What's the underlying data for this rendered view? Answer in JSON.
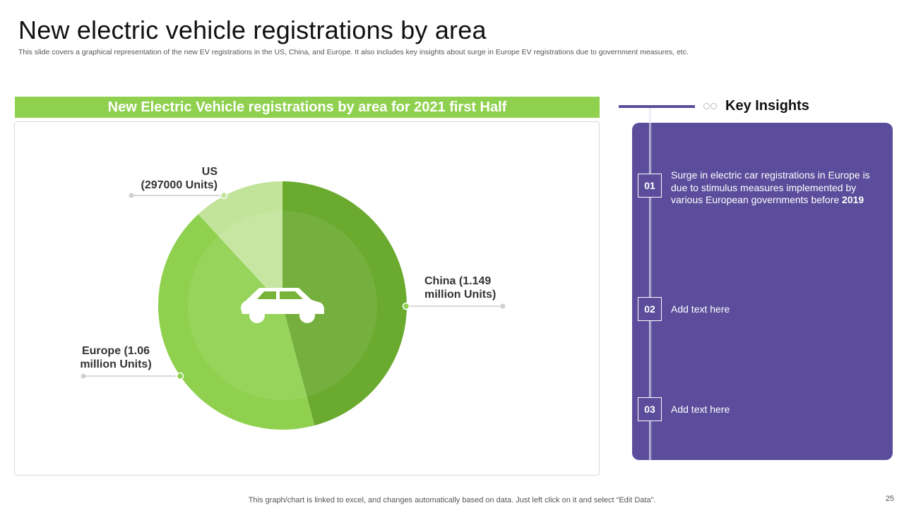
{
  "slide": {
    "title": "New electric vehicle registrations by area",
    "subtitle": "This slide covers a graphical representation of the new EV  registrations in the US, China, and Europe. It also includes key insights about surge in Europe EV registrations due to government measures, etc.",
    "footer": "This graph/chart is linked to excel,  and changes automatically based on data. Just left click on it and select “Edit Data”.",
    "page_number": "25"
  },
  "chart_header": "New Electric Vehicle registrations by area for 2021 first Half",
  "colors": {
    "china": "#6aaa2e",
    "europe": "#8fd14f",
    "us": "#c2e49a",
    "header": "#8fd14f",
    "panel": "#5b4d9b"
  },
  "chart_data": {
    "type": "pie",
    "title": "New Electric Vehicle registrations by area for 2021 first Half",
    "unit": "Units",
    "slices": [
      {
        "name": "China",
        "value": 1149000,
        "label_line1": "China  (1.149",
        "label_line2": "million Units)"
      },
      {
        "name": "Europe",
        "value": 1060000,
        "label_line1": "Europe  (1.06",
        "label_line2": "million Units)"
      },
      {
        "name": "US",
        "value": 297000,
        "label_line1": "US",
        "label_line2": "(297000 Units)"
      }
    ]
  },
  "center_icon": "car-icon",
  "insights": {
    "title": "Key Insights",
    "items": [
      {
        "number": "01",
        "text": "Surge in electric car registrations in Europe is due to stimulus measures implemented by various European governments before ",
        "bold": "2019"
      },
      {
        "number": "02",
        "text": "Add text here"
      },
      {
        "number": "03",
        "text": "Add text here"
      }
    ]
  }
}
